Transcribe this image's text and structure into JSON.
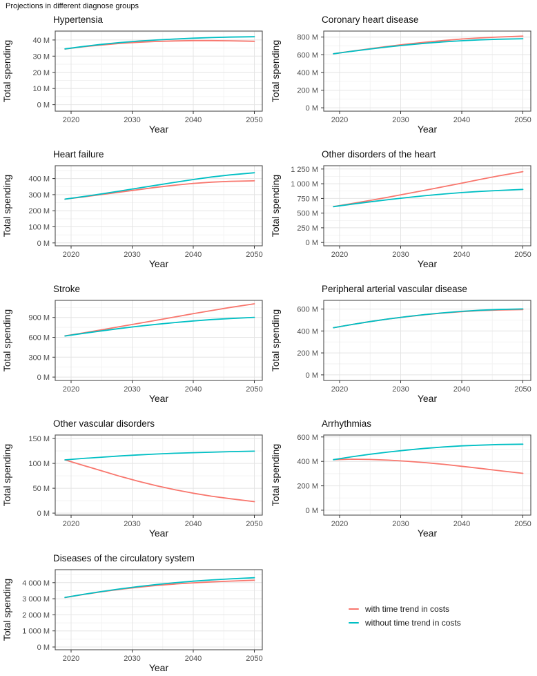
{
  "page": {
    "title": "Projections in different diagnose groups"
  },
  "colors": {
    "with_trend": "#F8766D",
    "without_trend": "#00BFC4",
    "grid_major": "#E4E4E4",
    "grid_minor": "#F2F2F2",
    "panel_border": "#4D4D4D",
    "tick_mark": "#333333",
    "tick_text": "#4D4D4D",
    "title_text": "#111111"
  },
  "axis_defaults": {
    "x_label": "Year",
    "y_label": "Total spending",
    "x_ticks": [
      2020,
      2030,
      2040,
      2050
    ],
    "x_minor_ticks": [
      2025,
      2035,
      2045
    ],
    "xlim": [
      2017.4,
      2051.3
    ]
  },
  "legend": {
    "items": [
      {
        "key": "with-trend",
        "label": "with time trend in costs",
        "color": "#F8766D"
      },
      {
        "key": "without-trend",
        "label": "without time trend in costs",
        "color": "#00BFC4"
      }
    ]
  },
  "chart_data": [
    {
      "type": "line",
      "slug": "hypertensia",
      "title": "Hypertensia",
      "xlabel": "Year",
      "ylabel": "Total spending",
      "row": 0,
      "col": 0,
      "x": [
        2019,
        2022,
        2025,
        2028,
        2031,
        2034,
        2037,
        2040,
        2043,
        2046,
        2050
      ],
      "series": [
        {
          "key": "with-trend",
          "name": "with time trend in costs",
          "color": "#F8766D",
          "values": [
            34.4,
            35.8,
            36.9,
            37.9,
            38.6,
            39.1,
            39.4,
            39.6,
            39.6,
            39.5,
            39.2
          ]
        },
        {
          "key": "without-trend",
          "name": "without time trend in costs",
          "color": "#00BFC4",
          "values": [
            34.5,
            36.0,
            37.3,
            38.4,
            39.3,
            40.0,
            40.6,
            41.1,
            41.5,
            41.8,
            42.0
          ]
        }
      ],
      "yticks": [
        0,
        10,
        20,
        30,
        40
      ],
      "ytick_labels": [
        "0 M",
        "10 M",
        "20 M",
        "30 M",
        "40 M"
      ],
      "ylim": [
        -4,
        45.5
      ],
      "xlim": [
        2017.4,
        2051.3
      ],
      "grid": true
    },
    {
      "type": "line",
      "slug": "coronary-heart-disease",
      "title": "Coronary heart disease",
      "xlabel": "Year",
      "ylabel": "Total spending",
      "row": 0,
      "col": 1,
      "x": [
        2019,
        2022,
        2025,
        2028,
        2031,
        2034,
        2037,
        2040,
        2043,
        2046,
        2050
      ],
      "series": [
        {
          "key": "with-trend",
          "name": "with time trend in costs",
          "color": "#F8766D",
          "values": [
            612,
            641,
            669,
            696,
            720,
            742,
            761,
            778,
            791,
            801,
            811
          ]
        },
        {
          "key": "without-trend",
          "name": "without time trend in costs",
          "color": "#00BFC4",
          "values": [
            611,
            639,
            665,
            690,
            711,
            730,
            746,
            759,
            769,
            776,
            781
          ]
        }
      ],
      "yticks": [
        0,
        200,
        400,
        600,
        800
      ],
      "ytick_labels": [
        "0 M",
        "200 M",
        "400 M",
        "600 M",
        "800 M"
      ],
      "ylim": [
        -38,
        868
      ],
      "xlim": [
        2017.4,
        2051.3
      ],
      "grid": true
    },
    {
      "type": "line",
      "slug": "heart-failure",
      "title": "Heart failure",
      "xlabel": "Year",
      "ylabel": "Total spending",
      "row": 1,
      "col": 0,
      "x": [
        2019,
        2022,
        2025,
        2028,
        2031,
        2034,
        2037,
        2040,
        2043,
        2046,
        2050
      ],
      "series": [
        {
          "key": "with-trend",
          "name": "with time trend in costs",
          "color": "#F8766D",
          "values": [
            272,
            286,
            301,
            316,
            331,
            346,
            359,
            370,
            378,
            383,
            386
          ]
        },
        {
          "key": "without-trend",
          "name": "without time trend in costs",
          "color": "#00BFC4",
          "values": [
            272,
            288,
            305,
            323,
            341,
            359,
            377,
            394,
            410,
            423,
            436
          ]
        }
      ],
      "yticks": [
        0,
        100,
        200,
        300,
        400
      ],
      "ytick_labels": [
        "0 M",
        "100 M",
        "200 M",
        "300 M",
        "400 M"
      ],
      "ylim": [
        -18,
        480
      ],
      "xlim": [
        2017.4,
        2051.3
      ],
      "grid": true
    },
    {
      "type": "line",
      "slug": "other-disorders-of-the-heart",
      "title": "Other disorders of the heart",
      "xlabel": "Year",
      "ylabel": "Total spending",
      "row": 1,
      "col": 1,
      "x": [
        2019,
        2022,
        2025,
        2028,
        2031,
        2034,
        2037,
        2040,
        2043,
        2046,
        2050
      ],
      "series": [
        {
          "key": "with-trend",
          "name": "with time trend in costs",
          "color": "#F8766D",
          "values": [
            612,
            663,
            716,
            772,
            830,
            889,
            949,
            1010,
            1072,
            1132,
            1205
          ]
        },
        {
          "key": "without-trend",
          "name": "without time trend in costs",
          "color": "#00BFC4",
          "values": [
            610,
            652,
            692,
            730,
            765,
            797,
            825,
            849,
            869,
            885,
            903
          ]
        }
      ],
      "yticks": [
        0,
        250,
        500,
        750,
        1000,
        1250
      ],
      "ytick_labels": [
        "0 M",
        "250 M",
        "500 M",
        "750 M",
        "1 000 M",
        "1 250 M"
      ],
      "ylim": [
        -56,
        1306
      ],
      "xlim": [
        2017.4,
        2051.3
      ],
      "grid": true
    },
    {
      "type": "line",
      "slug": "stroke",
      "title": "Stroke",
      "xlabel": "Year",
      "ylabel": "Total spending",
      "row": 2,
      "col": 0,
      "x": [
        2019,
        2022,
        2025,
        2028,
        2031,
        2034,
        2037,
        2040,
        2043,
        2046,
        2050
      ],
      "series": [
        {
          "key": "with-trend",
          "name": "with time trend in costs",
          "color": "#F8766D",
          "values": [
            622,
            667,
            713,
            761,
            809,
            858,
            907,
            956,
            1004,
            1050,
            1105
          ]
        },
        {
          "key": "without-trend",
          "name": "without time trend in costs",
          "color": "#00BFC4",
          "values": [
            620,
            659,
            697,
            733,
            766,
            796,
            823,
            847,
            867,
            883,
            901
          ]
        }
      ],
      "yticks": [
        0,
        300,
        600,
        900
      ],
      "ytick_labels": [
        "0 M",
        "300 M",
        "600 M",
        "900 M"
      ],
      "ylim": [
        -51,
        1157
      ],
      "xlim": [
        2017.4,
        2051.3
      ],
      "grid": true
    },
    {
      "type": "line",
      "slug": "peripheral-arterial-vascular-disease",
      "title": "Peripheral arterial vascular disease",
      "xlabel": "Year",
      "ylabel": "Total spending",
      "row": 2,
      "col": 1,
      "x": [
        2019,
        2022,
        2025,
        2028,
        2031,
        2034,
        2037,
        2040,
        2043,
        2046,
        2050
      ],
      "series": [
        {
          "key": "with-trend",
          "name": "with time trend in costs",
          "color": "#F8766D",
          "values": [
            430,
            459,
            486,
            510,
            530,
            549,
            564,
            576,
            585,
            591,
            595
          ]
        },
        {
          "key": "without-trend",
          "name": "without time trend in costs",
          "color": "#00BFC4",
          "values": [
            430,
            459,
            486,
            510,
            531,
            550,
            566,
            579,
            589,
            596,
            601
          ]
        }
      ],
      "yticks": [
        0,
        200,
        400,
        600
      ],
      "ytick_labels": [
        "0 M",
        "200 M",
        "400 M",
        "600 M"
      ],
      "ylim": [
        -51,
        679
      ],
      "xlim": [
        2017.4,
        2051.3
      ],
      "grid": true
    },
    {
      "type": "line",
      "slug": "other-vascular-disorders",
      "title": "Other vascular disorders",
      "xlabel": "Year",
      "ylabel": "Total spending",
      "row": 3,
      "col": 0,
      "x": [
        2019,
        2022,
        2025,
        2028,
        2031,
        2034,
        2037,
        2040,
        2043,
        2046,
        2050
      ],
      "series": [
        {
          "key": "with-trend",
          "name": "with time trend in costs",
          "color": "#F8766D",
          "values": [
            107,
            96,
            85,
            74,
            64,
            55,
            47,
            40,
            34,
            29,
            23
          ]
        },
        {
          "key": "without-trend",
          "name": "without time trend in costs",
          "color": "#00BFC4",
          "values": [
            107,
            110,
            112.5,
            115,
            117,
            118.8,
            120.3,
            121.5,
            122.5,
            123.5,
            124.5
          ]
        }
      ],
      "yticks": [
        0,
        50,
        100,
        150
      ],
      "ytick_labels": [
        "0 M",
        "50 M",
        "100 M",
        "150 M"
      ],
      "ylim": [
        -4,
        157
      ],
      "xlim": [
        2017.4,
        2051.3
      ],
      "grid": true
    },
    {
      "type": "line",
      "slug": "arrhythmias",
      "title": "Arrhythmias",
      "xlabel": "Year",
      "ylabel": "Total spending",
      "row": 3,
      "col": 1,
      "x": [
        2019,
        2022,
        2025,
        2028,
        2031,
        2034,
        2037,
        2040,
        2043,
        2046,
        2050
      ],
      "series": [
        {
          "key": "with-trend",
          "name": "with time trend in costs",
          "color": "#F8766D",
          "values": [
            414,
            418,
            416,
            410,
            401,
            390,
            376,
            360,
            343,
            325,
            302
          ]
        },
        {
          "key": "without-trend",
          "name": "without time trend in costs",
          "color": "#00BFC4",
          "values": [
            414,
            438,
            459,
            477,
            493,
            507,
            518,
            527,
            533,
            538,
            541
          ]
        }
      ],
      "yticks": [
        0,
        200,
        400,
        600
      ],
      "ytick_labels": [
        "0 M",
        "200 M",
        "400 M",
        "600 M"
      ],
      "ylim": [
        -40,
        616
      ],
      "xlim": [
        2017.4,
        2051.3
      ],
      "grid": true
    },
    {
      "type": "line",
      "slug": "diseases-of-the-circulatory-system",
      "title": "Diseases of the circulatory system",
      "xlabel": "Year",
      "ylabel": "Total spending",
      "row": 4,
      "col": 0,
      "x": [
        2019,
        2022,
        2025,
        2028,
        2031,
        2034,
        2037,
        2040,
        2043,
        2046,
        2050
      ],
      "series": [
        {
          "key": "with-trend",
          "name": "with time trend in costs",
          "color": "#F8766D",
          "values": [
            3080,
            3265,
            3435,
            3585,
            3715,
            3825,
            3915,
            3990,
            4050,
            4095,
            4150
          ]
        },
        {
          "key": "without-trend",
          "name": "without time trend in costs",
          "color": "#00BFC4",
          "values": [
            3080,
            3270,
            3450,
            3610,
            3755,
            3885,
            3995,
            4090,
            4170,
            4235,
            4305
          ]
        }
      ],
      "yticks": [
        0,
        1000,
        2000,
        3000,
        4000
      ],
      "ytick_labels": [
        "0 M",
        "1 000 M",
        "2 000 M",
        "3 000 M",
        "4 000 M"
      ],
      "ylim": [
        -170,
        4808
      ],
      "xlim": [
        2017.4,
        2051.3
      ],
      "grid": true
    }
  ]
}
